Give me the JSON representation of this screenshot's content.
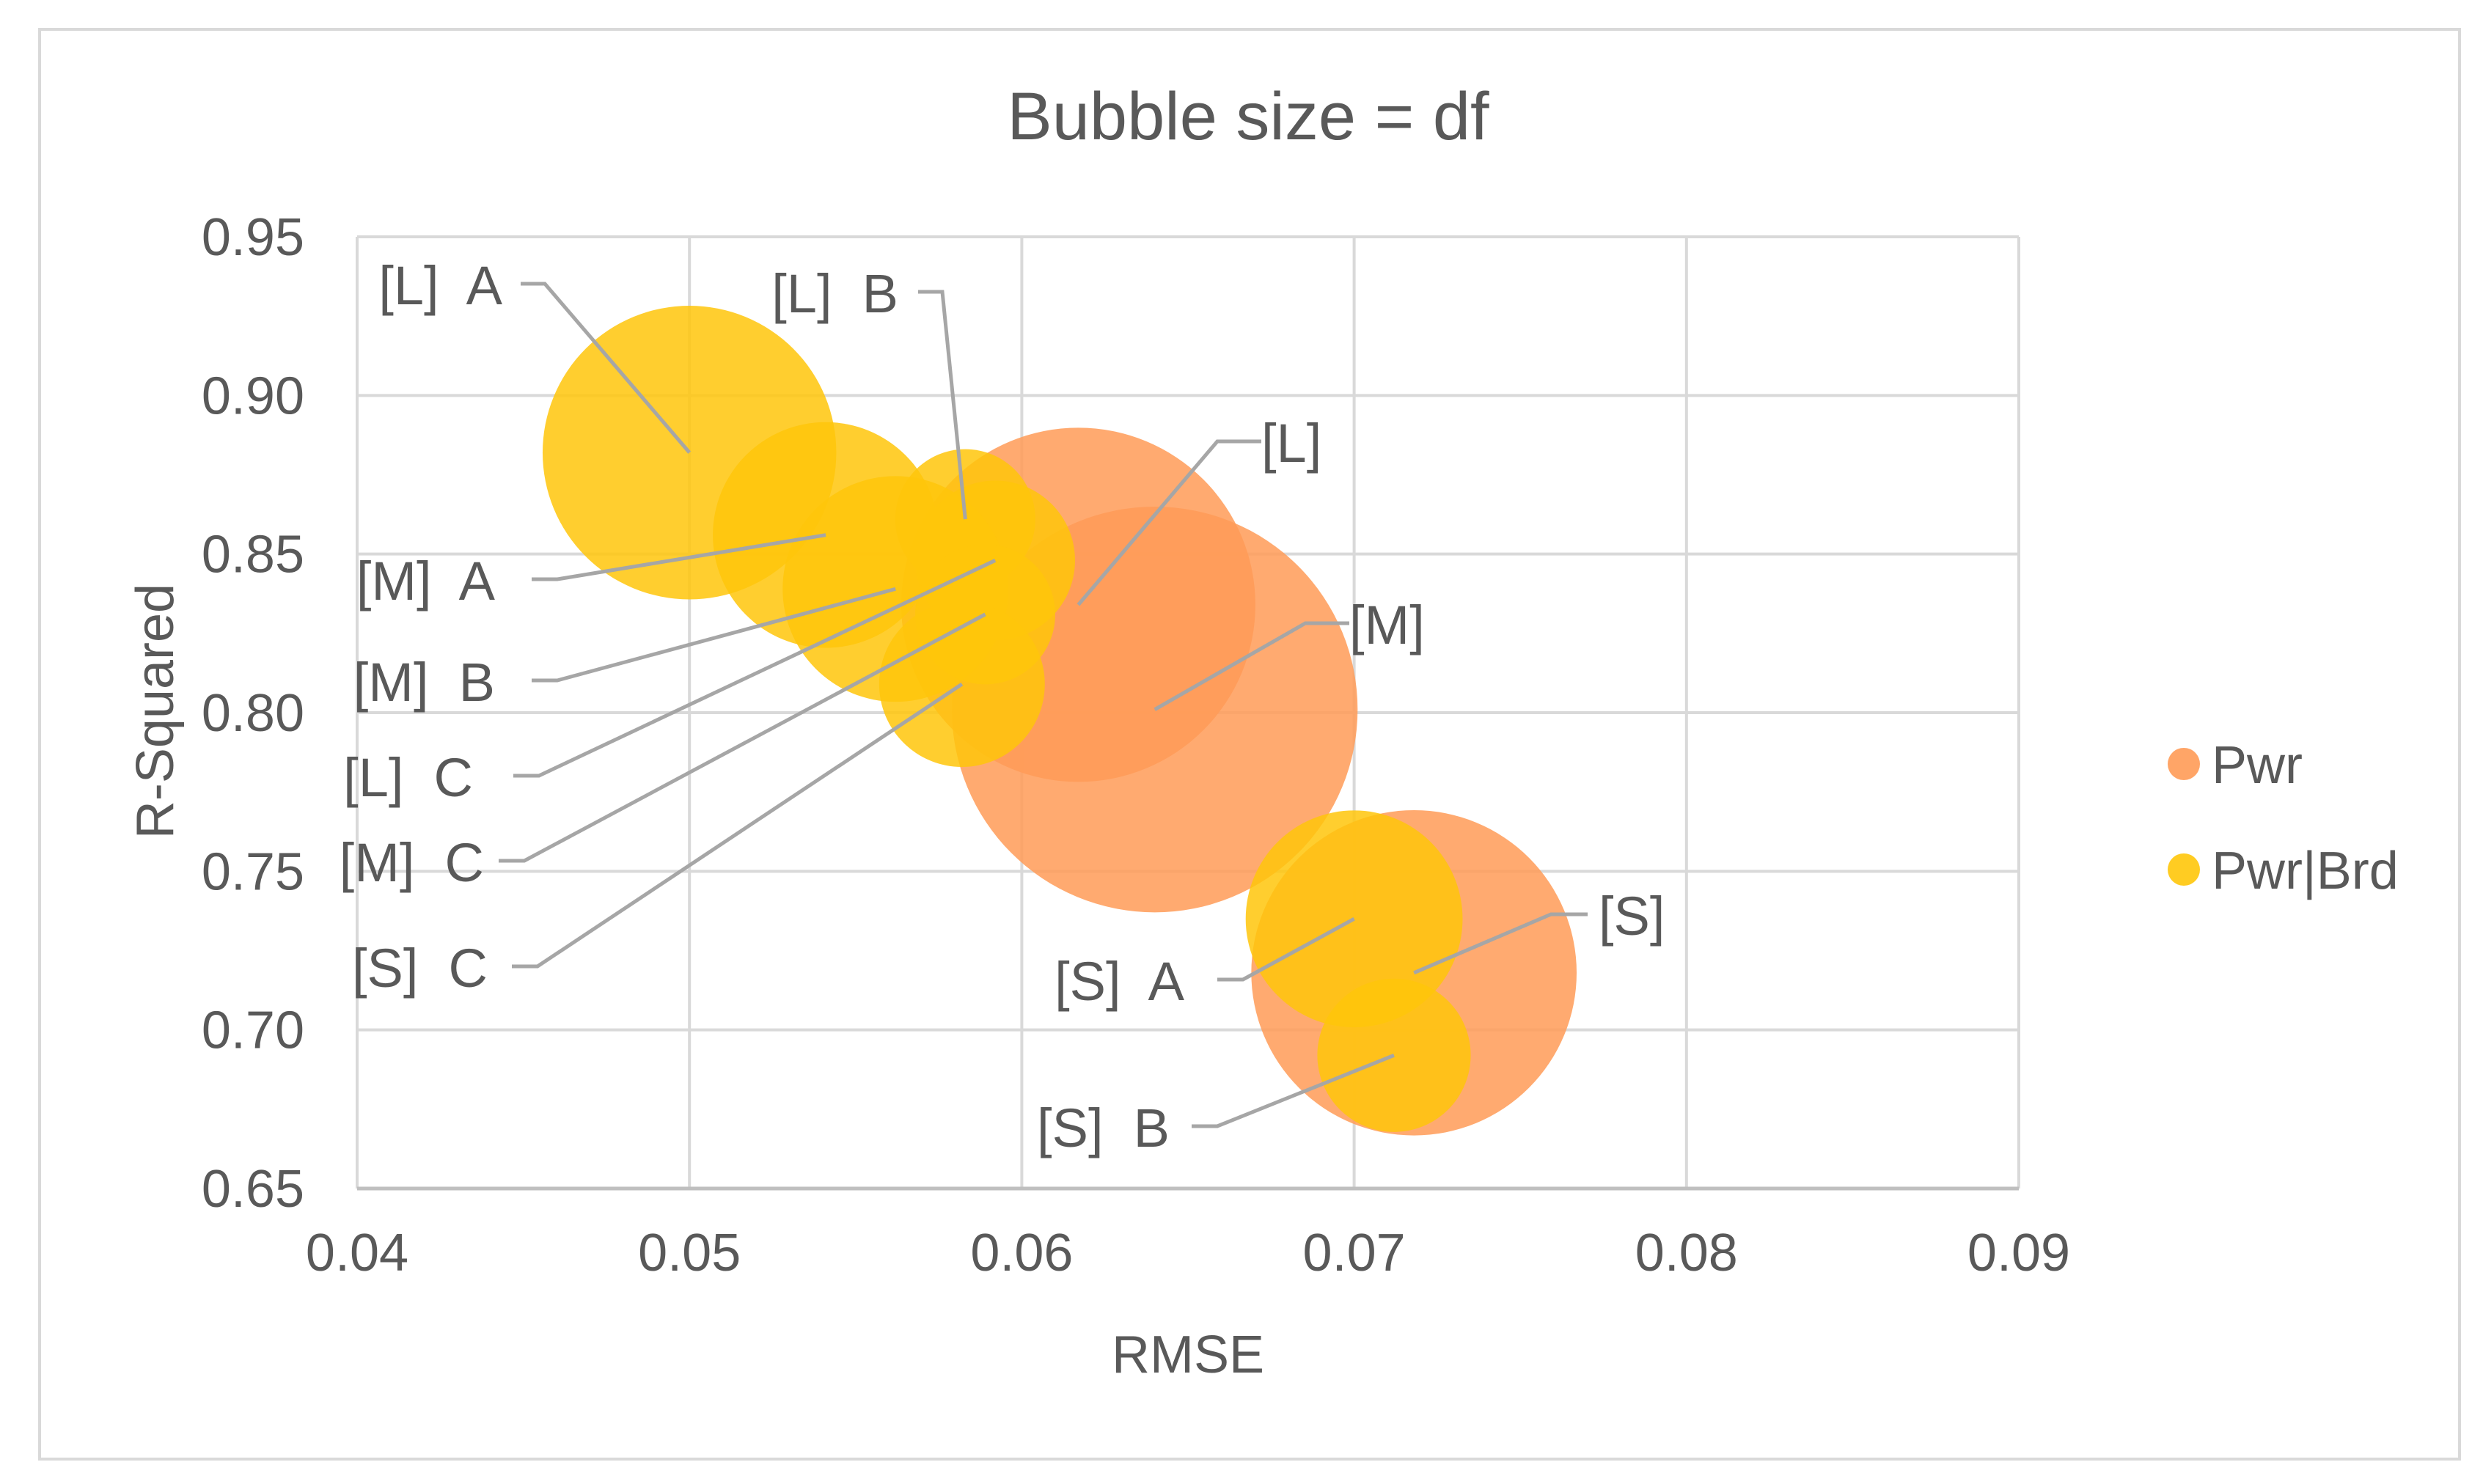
{
  "chart_data": {
    "type": "bubble",
    "title": "Bubble size = df",
    "xlabel": "RMSE",
    "ylabel": "R-Squared",
    "xlim": [
      0.04,
      0.09
    ],
    "ylim": [
      0.65,
      0.95
    ],
    "x_ticks": [
      "0.04",
      "0.05",
      "0.06",
      "0.07",
      "0.08",
      "0.09"
    ],
    "y_ticks": [
      "0.65",
      "0.70",
      "0.75",
      "0.80",
      "0.85",
      "0.90",
      "0.95"
    ],
    "grid": true,
    "legend_position": "right",
    "series": [
      {
        "name": "Pwr",
        "color": "#FF9B57",
        "points": [
          {
            "label": "[L]",
            "x": 0.0617,
            "y": 0.834,
            "size": 3.2
          },
          {
            "label": "[M]",
            "x": 0.064,
            "y": 0.801,
            "size": 4.2
          },
          {
            "label": "[S]",
            "x": 0.0718,
            "y": 0.718,
            "size": 2.7
          }
        ]
      },
      {
        "name": "Pwr|Brd",
        "color": "#FFC60A",
        "points": [
          {
            "label": "[L]  A",
            "x": 0.05,
            "y": 0.882,
            "size": 2.2
          },
          {
            "label": "[L]  B",
            "x": 0.0583,
            "y": 0.861,
            "size": 0.5
          },
          {
            "label": "[L]  C",
            "x": 0.0592,
            "y": 0.848,
            "size": 0.65
          },
          {
            "label": "[M]  A",
            "x": 0.0541,
            "y": 0.856,
            "size": 1.3
          },
          {
            "label": "[M]  B",
            "x": 0.0562,
            "y": 0.839,
            "size": 1.3
          },
          {
            "label": "[M]  C",
            "x": 0.0589,
            "y": 0.831,
            "size": 0.5
          },
          {
            "label": "[S]  A",
            "x": 0.07,
            "y": 0.735,
            "size": 1.2
          },
          {
            "label": "[S]  B",
            "x": 0.0712,
            "y": 0.692,
            "size": 0.6
          },
          {
            "label": "[S]  C",
            "x": 0.0582,
            "y": 0.809,
            "size": 0.7
          }
        ]
      }
    ]
  }
}
